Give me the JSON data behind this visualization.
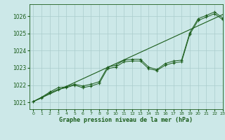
{
  "title": "Graphe pression niveau de la mer (hPa)",
  "bg_color": "#cce8e8",
  "grid_color": "#aacccc",
  "line_color": "#1a5c1a",
  "xlim": [
    -0.5,
    23
  ],
  "ylim": [
    1020.6,
    1026.7
  ],
  "yticks": [
    1021,
    1022,
    1023,
    1024,
    1025,
    1026
  ],
  "xticks": [
    0,
    1,
    2,
    3,
    4,
    5,
    6,
    7,
    8,
    9,
    10,
    11,
    12,
    13,
    14,
    15,
    16,
    17,
    18,
    19,
    20,
    21,
    22,
    23
  ],
  "series1": [
    1021.05,
    1021.3,
    1021.6,
    1021.85,
    1021.9,
    1022.05,
    1021.95,
    1022.05,
    1022.2,
    1023.05,
    1023.15,
    1023.45,
    1023.5,
    1023.5,
    1023.05,
    1022.9,
    1023.25,
    1023.4,
    1023.45,
    1025.05,
    1025.85,
    1026.05,
    1026.25,
    1025.9
  ],
  "series2": [
    1021.05,
    1021.25,
    1021.55,
    1021.75,
    1021.85,
    1022.0,
    1021.85,
    1021.95,
    1022.1,
    1022.95,
    1023.05,
    1023.35,
    1023.4,
    1023.4,
    1022.95,
    1022.85,
    1023.15,
    1023.3,
    1023.35,
    1024.95,
    1025.75,
    1025.95,
    1026.15,
    1025.8
  ],
  "trend_x": [
    0,
    23
  ],
  "trend_y": [
    1021.05,
    1026.1
  ]
}
